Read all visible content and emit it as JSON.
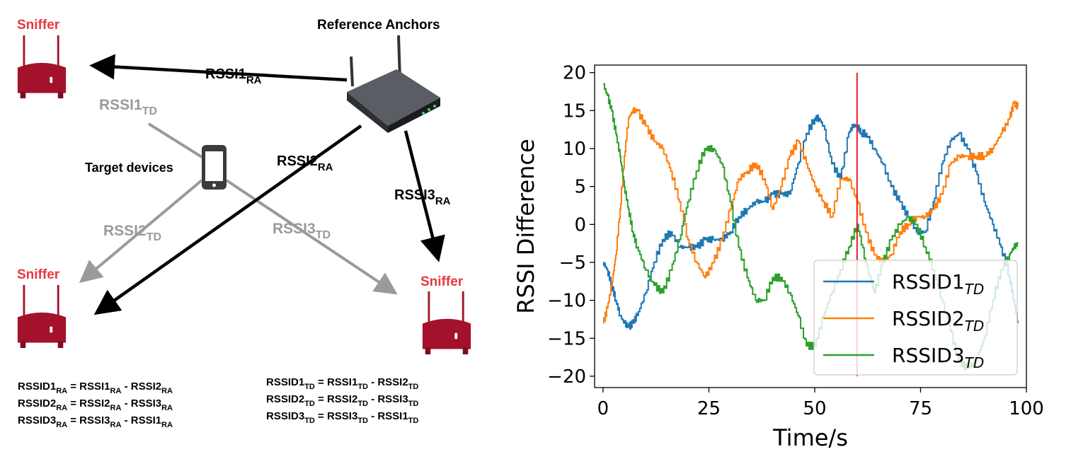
{
  "diagram": {
    "sniffer_label": "Sniffer",
    "anchor_label": "Reference Anchors",
    "target_label": "Target devices",
    "links_ra": [
      {
        "base": "RSSI1",
        "sub": "RA"
      },
      {
        "base": "RSSI2",
        "sub": "RA"
      },
      {
        "base": "RSSI3",
        "sub": "RA"
      }
    ],
    "links_td": [
      {
        "base": "RSSI1",
        "sub": "TD"
      },
      {
        "base": "RSSI2",
        "sub": "TD"
      },
      {
        "base": "RSSI3",
        "sub": "TD"
      }
    ],
    "equations_ra": [
      [
        "RSSID1",
        "RA",
        " = RSSI1",
        "RA",
        " - RSSI2",
        "RA"
      ],
      [
        "RSSID2",
        "RA",
        " = RSSI2",
        "RA",
        " - RSSI3",
        "RA"
      ],
      [
        "RSSID3",
        "RA",
        " = RSSI3",
        "RA",
        " - RSSI1",
        "RA"
      ]
    ],
    "equations_td": [
      [
        "RSSID1",
        "TD",
        " = RSSI1",
        "TD",
        " - RSSI2",
        "TD"
      ],
      [
        "RSSID2",
        "TD",
        " = RSSI2",
        "TD",
        " - RSSI3",
        "TD"
      ],
      [
        "RSSID3",
        "TD",
        " = RSSI3",
        "TD",
        " - RSSI1",
        "TD"
      ]
    ],
    "colors": {
      "sniffer": "#a3122a",
      "red_text": "#e8383d",
      "gray": "#9a9a9a"
    }
  },
  "chart_data": {
    "type": "line",
    "xlabel": "Time/s",
    "ylabel": "RSSI Difference",
    "xlim": [
      -2,
      100
    ],
    "ylim": [
      -21.5,
      21
    ],
    "xticks": [
      0,
      25,
      50,
      75,
      100
    ],
    "yticks": [
      20,
      15,
      10,
      5,
      0,
      -5,
      -10,
      -15,
      -20
    ],
    "legend_position": "lower-right",
    "vline": {
      "x": 60,
      "ymin": -20,
      "ymax": 20,
      "color": "#e41a1c"
    },
    "series": [
      {
        "name": "RSSID1",
        "sub": "TD",
        "color": "#1f77b4",
        "x": [
          0,
          1,
          2,
          3,
          4,
          5,
          6,
          7,
          8,
          10,
          12,
          14,
          16,
          18,
          20,
          22,
          24,
          26,
          28,
          30,
          32,
          34,
          36,
          38,
          40,
          42,
          44,
          46,
          48,
          50,
          51,
          52,
          54,
          56,
          58,
          59,
          60,
          61,
          62,
          64,
          66,
          68,
          70,
          72,
          74,
          76,
          78,
          80,
          82,
          84,
          86,
          88,
          90,
          92,
          94,
          96,
          97,
          98
        ],
        "y": [
          -5,
          -6,
          -8,
          -10,
          -12,
          -13,
          -13.5,
          -13,
          -12,
          -9,
          -5,
          -2,
          -1,
          -3,
          -3,
          -3,
          -2,
          -2,
          -2,
          -1,
          1,
          2,
          3,
          3,
          4,
          4,
          4,
          8,
          12,
          14,
          14,
          13,
          8,
          6,
          12,
          13,
          13,
          12,
          12,
          10,
          8,
          5,
          3,
          1,
          -1,
          -1,
          3,
          8,
          11,
          12,
          10,
          7,
          3,
          0,
          -3,
          -7,
          -10,
          -13
        ]
      },
      {
        "name": "RSSID2",
        "sub": "TD",
        "color": "#ff7f0e",
        "x": [
          0,
          1,
          2,
          3,
          4,
          5,
          6,
          7,
          8,
          10,
          12,
          14,
          16,
          18,
          20,
          22,
          24,
          26,
          28,
          30,
          32,
          34,
          36,
          38,
          40,
          42,
          44,
          46,
          48,
          50,
          52,
          54,
          56,
          58,
          60,
          62,
          64,
          66,
          68,
          70,
          72,
          74,
          76,
          78,
          80,
          82,
          84,
          86,
          88,
          90,
          92,
          94,
          96,
          97,
          98
        ],
        "y": [
          -13,
          -11,
          -8,
          -4,
          2,
          9,
          14,
          15,
          15,
          13,
          11,
          10,
          7,
          3,
          -2,
          -5,
          -7,
          -5,
          -2,
          2,
          6,
          7,
          8,
          6,
          2,
          5,
          9,
          11,
          8,
          5,
          3,
          1,
          6,
          6,
          3,
          -1,
          -4,
          -5,
          -4,
          -1,
          0,
          1,
          1,
          2,
          4,
          8,
          9,
          9,
          9,
          9,
          10,
          12,
          14,
          16,
          15.5
        ]
      },
      {
        "name": "RSSID3",
        "sub": "TD",
        "color": "#2ca02c",
        "x": [
          0,
          1,
          2,
          3,
          4,
          5,
          6,
          7,
          8,
          10,
          12,
          14,
          16,
          18,
          20,
          22,
          24,
          26,
          28,
          30,
          32,
          34,
          36,
          38,
          40,
          42,
          44,
          46,
          48,
          50,
          52,
          54,
          56,
          58,
          60,
          62,
          64,
          66,
          68,
          70,
          72,
          74,
          76,
          78,
          80,
          82,
          84,
          86,
          88,
          90,
          92,
          94,
          96,
          97,
          98
        ],
        "y": [
          18.5,
          17,
          15,
          12,
          9,
          5,
          2,
          -1,
          -3,
          -6,
          -8,
          -9,
          -6,
          -2,
          3,
          7,
          10,
          10,
          8,
          3,
          -3,
          -7,
          -10,
          -10,
          -7,
          -7,
          -9,
          -12,
          -16,
          -16,
          -12,
          -9,
          -6,
          -3,
          0,
          -5,
          -9,
          -5,
          -2,
          0,
          1,
          0,
          -3,
          -6,
          -10,
          -14,
          -18,
          -19,
          -18,
          -15,
          -10,
          -6,
          -4,
          -3,
          -2.5
        ]
      }
    ]
  }
}
